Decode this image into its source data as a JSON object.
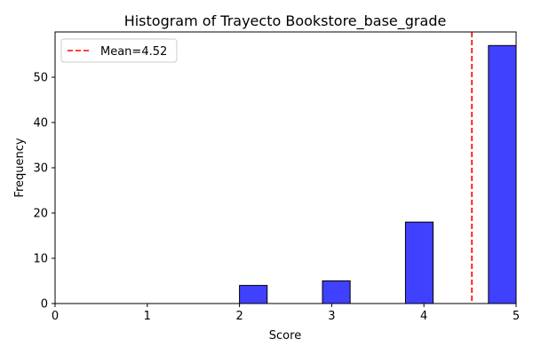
{
  "chart_data": {
    "type": "bar",
    "title": "Histogram of Trayecto Bookstore_base_grade",
    "xlabel": "Score",
    "ylabel": "Frequency",
    "xlim": [
      0,
      5
    ],
    "ylim": [
      0,
      60
    ],
    "xticks": [
      0,
      1,
      2,
      3,
      4,
      5
    ],
    "yticks": [
      0,
      10,
      20,
      30,
      40,
      50
    ],
    "bins": [
      {
        "start": 2.0,
        "end": 2.3,
        "count": 4
      },
      {
        "start": 2.9,
        "end": 3.2,
        "count": 5
      },
      {
        "start": 3.8,
        "end": 4.1,
        "count": 18
      },
      {
        "start": 4.7,
        "end": 5.0,
        "count": 57
      }
    ],
    "bar_color": "#4040ff",
    "bar_edge_color": "#000000",
    "mean": {
      "value": 4.52,
      "label": "Mean=4.52",
      "color": "#ff0000"
    },
    "legend_position": "top-left",
    "grid": false
  }
}
